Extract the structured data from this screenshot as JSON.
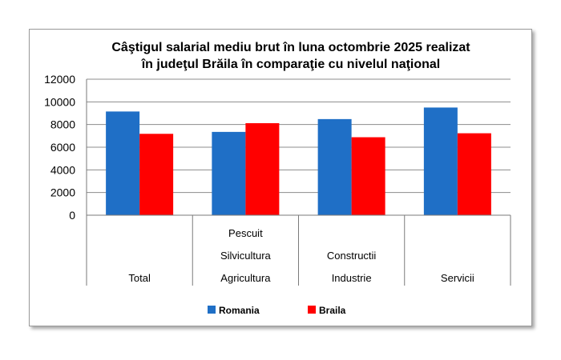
{
  "chart_data": {
    "type": "bar",
    "title_lines": [
      "Câştigul salarial mediu brut în luna octombrie 2025 realizat",
      "în judeţul Brăila în comparaţie cu nivelul naţional"
    ],
    "categories": [
      [
        "Total"
      ],
      [
        "Pescuit",
        "Silvicultura",
        "Agricultura"
      ],
      [
        "Constructii",
        "Industrie"
      ],
      [
        "Servicii"
      ]
    ],
    "series": [
      {
        "name": "Romania",
        "color": "#1f6fc6",
        "values": [
          9150,
          7350,
          8480,
          9500
        ]
      },
      {
        "name": "Braila",
        "color": "#ff0000",
        "values": [
          7180,
          8120,
          6880,
          7230
        ]
      }
    ],
    "ylim": [
      0,
      12000
    ],
    "yticks": [
      "0",
      "2000",
      "4000",
      "6000",
      "8000",
      "10000",
      "12000"
    ],
    "grid": true,
    "legend_position": "bottom"
  }
}
